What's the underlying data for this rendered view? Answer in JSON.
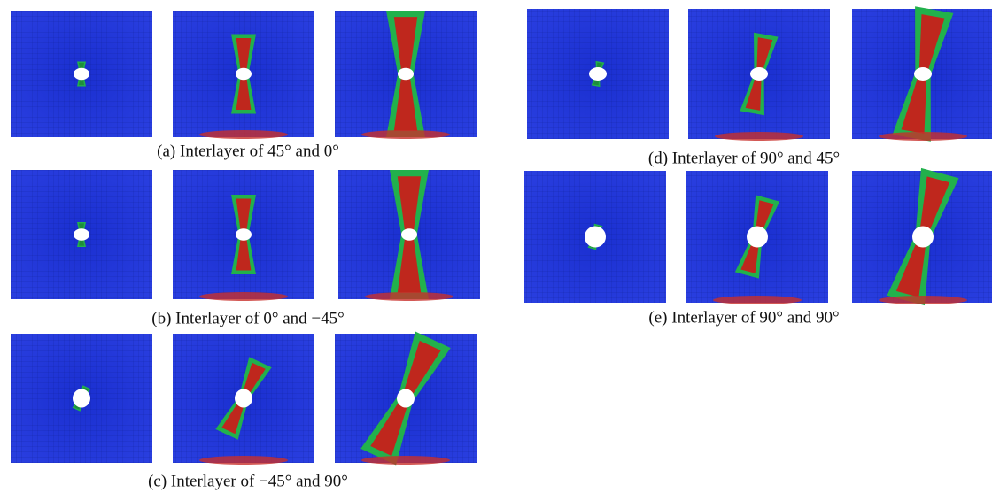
{
  "figure": {
    "captions": [
      "(a) Interlayer of 45° and 0°",
      "(b) Interlayer of 0° and −45°",
      "(c) Interlayer of −45° and 90°",
      "(d) Interlayer of 90° and 45°",
      "(e) Interlayer of 90° and 90°"
    ]
  }
}
